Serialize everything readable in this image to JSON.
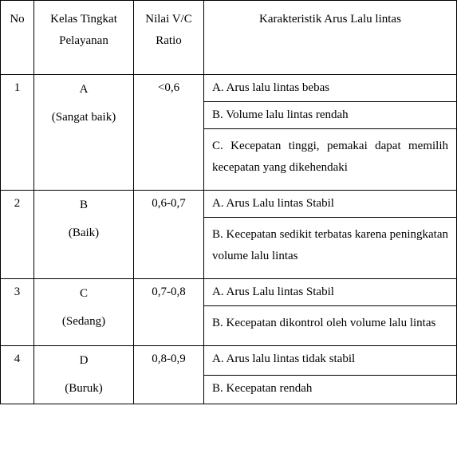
{
  "table": {
    "headers": {
      "no": "No",
      "kelas_l1": "Kelas Tingkat",
      "kelas_l2": "Pelayanan",
      "nilai_l1": "Nilai V/C",
      "nilai_l2": "Ratio",
      "karakteristik": "Karakteristik Arus Lalu lintas"
    },
    "rows": [
      {
        "no": "1",
        "kelas_main": "A",
        "kelas_sub": "(Sangat baik)",
        "nilai": "<0,6",
        "chars": [
          "A. Arus lalu lintas bebas",
          "B. Volume lalu lintas rendah",
          "C. Kecepatan tinggi, pemakai dapat memilih kecepatan yang dikehendaki"
        ]
      },
      {
        "no": "2",
        "kelas_main": "B",
        "kelas_sub": "(Baik)",
        "nilai": "0,6-0,7",
        "chars": [
          "A. Arus Lalu lintas Stabil",
          "B. Kecepatan sedikit terbatas karena peningkatan volume lalu lintas"
        ]
      },
      {
        "no": "3",
        "kelas_main": "C",
        "kelas_sub": "(Sedang)",
        "nilai": "0,7-0,8",
        "chars": [
          "A. Arus Lalu lintas Stabil",
          "B. Kecepatan dikontrol oleh volume lalu lintas"
        ]
      },
      {
        "no": "4",
        "kelas_main": "D",
        "kelas_sub": "(Buruk)",
        "nilai": "0,8-0,9",
        "chars": [
          "A. Arus lalu lintas tidak stabil",
          "B. Kecepatan rendah"
        ]
      }
    ]
  }
}
